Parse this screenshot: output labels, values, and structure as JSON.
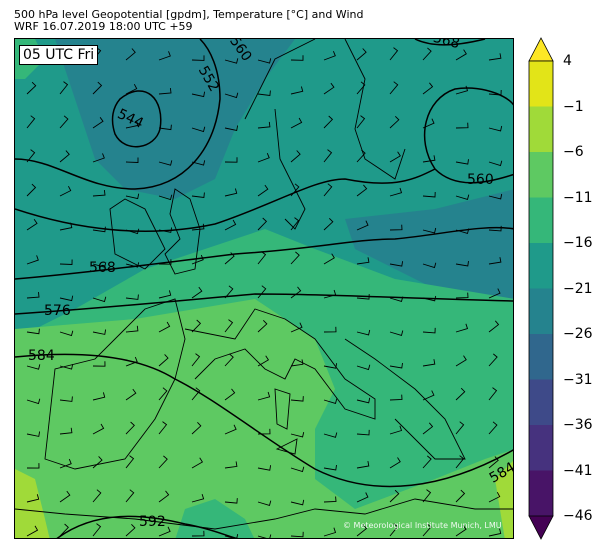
{
  "header": {
    "title": "500 hPa level Geopotential [gpdm], Temperature [°C] and Wind",
    "subtitle": "WRF 16.07.2019 18:00 UTC +59"
  },
  "map": {
    "valid_time_label": "05 UTC Fri",
    "credit": "© Meteorological Institute Munich, LMU",
    "contour_labels": [
      "560",
      "552",
      "544",
      "568",
      "560",
      "568",
      "576",
      "584",
      "592",
      "584"
    ]
  },
  "colorbar": {
    "ticks": [
      "4",
      "−1",
      "−6",
      "−11",
      "−16",
      "−21",
      "−26",
      "−31",
      "−36",
      "−41",
      "−46"
    ],
    "colors": [
      "#e2e418",
      "#a0da39",
      "#5ec962",
      "#35b779",
      "#1f9a8a",
      "#25838e",
      "#30678d",
      "#3e4a89",
      "#46327e",
      "#481467"
    ],
    "over_color": "#fde725",
    "under_color": "#440154"
  }
}
